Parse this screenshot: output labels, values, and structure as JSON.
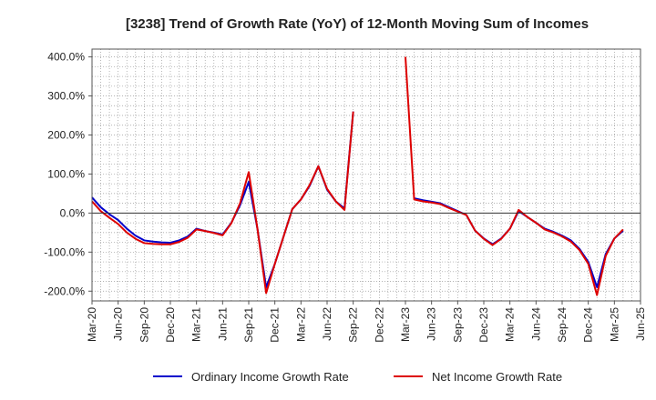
{
  "chart_data": {
    "type": "line",
    "title": "[3238]  Trend of Growth Rate (YoY) of 12-Month Moving Sum of Incomes",
    "xlabel": "",
    "ylabel": "",
    "x_ticks": [
      "Mar-20",
      "Jun-20",
      "Sep-20",
      "Dec-20",
      "Mar-21",
      "Jun-21",
      "Sep-21",
      "Dec-21",
      "Mar-22",
      "Jun-22",
      "Sep-22",
      "Dec-22",
      "Mar-23",
      "Jun-23",
      "Sep-23",
      "Dec-23",
      "Mar-24",
      "Jun-24",
      "Sep-24",
      "Dec-24",
      "Mar-25",
      "Jun-25"
    ],
    "y_ticks": [
      {
        "value": 400,
        "label": "400.0%"
      },
      {
        "value": 300,
        "label": "300.0%"
      },
      {
        "value": 200,
        "label": "200.0%"
      },
      {
        "value": 100,
        "label": "100.0%"
      },
      {
        "value": 0,
        "label": "0.0%"
      },
      {
        "value": -100,
        "label": "-100.0%"
      },
      {
        "value": -200,
        "label": "-200.0%"
      }
    ],
    "ylim": [
      -225,
      420
    ],
    "grid": true,
    "legend_position": "bottom",
    "colors": {
      "zero_line": "#333333",
      "grid": "#9a9a9a"
    },
    "series": [
      {
        "name": "Ordinary Income Growth Rate",
        "color": "#0000cc",
        "values": [
          40,
          15,
          -3,
          -18,
          -40,
          -58,
          -70,
          -73,
          -75,
          -76,
          -70,
          -60,
          -40,
          -46,
          -50,
          -55,
          -25,
          20,
          80,
          -40,
          -190,
          -130,
          -60,
          10,
          35,
          70,
          120,
          60,
          30,
          12,
          260,
          null,
          null,
          null,
          null,
          null,
          null,
          38,
          33,
          29,
          25,
          15,
          5,
          -5,
          -45,
          -65,
          -80,
          -65,
          -40,
          5,
          -10,
          -25,
          -40,
          -48,
          -58,
          -70,
          -92,
          -125,
          -190,
          -105,
          -65,
          -45
        ]
      },
      {
        "name": "Net Income Growth Rate",
        "color": "#dd0000",
        "values": [
          30,
          5,
          -12,
          -28,
          -50,
          -66,
          -77,
          -79,
          -80,
          -80,
          -74,
          -63,
          -42,
          -46,
          -51,
          -57,
          -26,
          25,
          105,
          -40,
          -205,
          -130,
          -60,
          10,
          35,
          72,
          120,
          62,
          30,
          8,
          260,
          null,
          null,
          null,
          null,
          null,
          400,
          35,
          30,
          27,
          23,
          13,
          4,
          -5,
          -45,
          -66,
          -82,
          -66,
          -40,
          8,
          -10,
          -25,
          -42,
          -50,
          -60,
          -73,
          -95,
          -130,
          -210,
          -110,
          -65,
          -42
        ]
      }
    ]
  }
}
